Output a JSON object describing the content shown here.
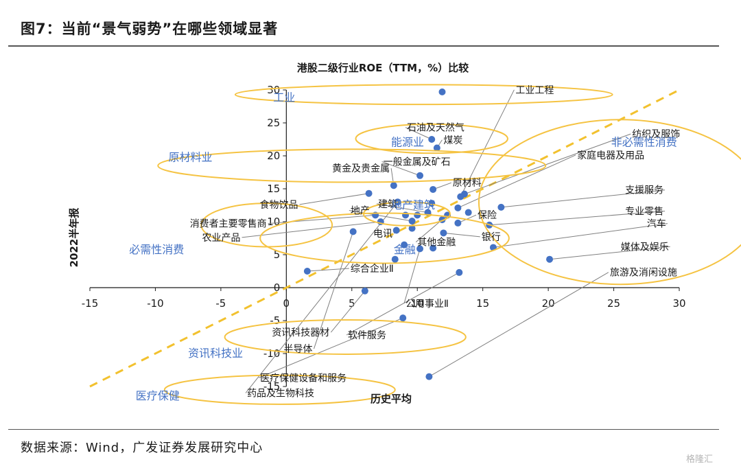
{
  "figure": {
    "title": "图7：当前“景气弱势”在哪些领域显著",
    "source": "数据来源：Wind，广发证券发展研究中心",
    "watermark": "格隆汇"
  },
  "colors": {
    "points": "#4472c4",
    "ellipse": "#f5c342",
    "diagonal": "#f2c12e",
    "leader": "#7f7f7f",
    "group_text": "#4472c4"
  },
  "chart_data": {
    "type": "scatter",
    "title": "港股二级行业ROE（TTM，%）比较",
    "xlabel": "历史平均",
    "ylabel": "2022半年报",
    "xlim": [
      -15,
      30
    ],
    "ylim": [
      -15,
      30
    ],
    "xticks": [
      -15,
      -10,
      -5,
      0,
      5,
      10,
      15,
      20,
      25,
      30
    ],
    "yticks": [
      -15,
      -10,
      -5,
      0,
      5,
      10,
      15,
      20,
      25,
      30
    ],
    "reference_line": "y = x",
    "points": [
      {
        "label": "工业工程",
        "x": 13.3,
        "y": 13.8,
        "lx": 17.5,
        "ly": 29.5,
        "anchor": "start"
      },
      {
        "label": "石油及天然气",
        "x": 11.1,
        "y": 22.5,
        "lx": 9.2,
        "ly": 23.8,
        "anchor": "start"
      },
      {
        "label": "煤炭",
        "x": 11.5,
        "y": 21.2,
        "lx": 12.0,
        "ly": 21.9,
        "anchor": "start"
      },
      {
        "label": "纺织及服饰",
        "x": 13.6,
        "y": 14.2,
        "lx": 26.4,
        "ly": 22.8,
        "anchor": "start"
      },
      {
        "label": "家庭电器及用品",
        "x": 13.1,
        "y": 12.1,
        "lx": 22.2,
        "ly": 19.6,
        "anchor": "start"
      },
      {
        "label": "黄金及贵金属",
        "x": 8.2,
        "y": 15.5,
        "lx": 7.9,
        "ly": 17.6,
        "anchor": "end"
      },
      {
        "label": "一般金属及矿石",
        "x": 10.2,
        "y": 17.0,
        "lx": 7.4,
        "ly": 18.6,
        "anchor": "start"
      },
      {
        "label": "原材料",
        "x": 11.2,
        "y": 14.9,
        "lx": 12.7,
        "ly": 15.4,
        "anchor": "start"
      },
      {
        "label": "支援服务",
        "x": 16.4,
        "y": 12.2,
        "lx": 28.8,
        "ly": 14.3,
        "anchor": "end"
      },
      {
        "label": "专业零售",
        "x": 15.5,
        "y": 9.5,
        "lx": 28.8,
        "ly": 11.1,
        "anchor": "end"
      },
      {
        "label": "汽车",
        "x": 15.8,
        "y": 6.1,
        "lx": 29.0,
        "ly": 9.2,
        "anchor": "end"
      },
      {
        "label": "媒体及娱乐",
        "x": 20.1,
        "y": 4.3,
        "lx": 29.2,
        "ly": 5.7,
        "anchor": "end"
      },
      {
        "label": "旅游及消闲设施",
        "x": 10.9,
        "y": -13.5,
        "lx": 24.7,
        "ly": 1.8,
        "anchor": "start"
      },
      {
        "label": "建筑",
        "x": 10.8,
        "y": 11.4,
        "lx": 7.0,
        "ly": 12.2,
        "anchor": "start"
      },
      {
        "label": "地产",
        "x": 9.6,
        "y": 10.1,
        "lx": 4.9,
        "ly": 11.2,
        "anchor": "start"
      },
      {
        "label": "保险",
        "x": 13.1,
        "y": 9.8,
        "lx": 14.6,
        "ly": 10.5,
        "anchor": "start"
      },
      {
        "label": "食物饮品",
        "x": 6.3,
        "y": 14.3,
        "lx": 0.9,
        "ly": 12.1,
        "anchor": "end"
      },
      {
        "label": "消费者主要零售商",
        "x": 6.8,
        "y": 11.0,
        "lx": -1.5,
        "ly": 9.2,
        "anchor": "end"
      },
      {
        "label": "农业产品",
        "x": 7.2,
        "y": 10.0,
        "lx": -3.5,
        "ly": 7.1,
        "anchor": "end"
      },
      {
        "label": "电讯",
        "x": 8.4,
        "y": 8.7,
        "lx": 8.1,
        "ly": 7.7,
        "anchor": "end"
      },
      {
        "label": "其他金融",
        "x": 12.3,
        "y": 11.0,
        "lx": 10.0,
        "ly": 6.4,
        "anchor": "start"
      },
      {
        "label": "银行",
        "x": 12.0,
        "y": 8.3,
        "lx": 14.9,
        "ly": 7.2,
        "anchor": "start"
      },
      {
        "label": "综合企业Ⅱ",
        "x": 1.6,
        "y": 2.5,
        "lx": 4.9,
        "ly": 2.4,
        "anchor": "start"
      },
      {
        "label": "公用事业Ⅱ",
        "x": 10.2,
        "y": 5.9,
        "lx": 9.1,
        "ly": -2.9,
        "anchor": "start"
      },
      {
        "label": "资讯科技器材",
        "x": 6.0,
        "y": -0.5,
        "lx": 3.3,
        "ly": -7.3,
        "anchor": "end"
      },
      {
        "label": "软件服务",
        "x": 13.2,
        "y": 2.3,
        "lx": 4.7,
        "ly": -7.7,
        "anchor": "start"
      },
      {
        "label": "半导体",
        "x": 5.1,
        "y": 8.5,
        "lx": 2.0,
        "ly": -9.8,
        "anchor": "end"
      },
      {
        "label": "医疗保健设备和服务",
        "x": 8.9,
        "y": -4.6,
        "lx": -2.0,
        "ly": -14.2,
        "anchor": "start"
      },
      {
        "label": "药品及生物科技",
        "x": 8.5,
        "y": 13.0,
        "lx": -3.0,
        "ly": -16.5,
        "anchor": "start"
      }
    ],
    "extra_points": [
      {
        "x": 9.1,
        "y": 11.0
      },
      {
        "x": 11.1,
        "y": 12.8
      },
      {
        "x": 9.6,
        "y": 9.0
      },
      {
        "x": 13.9,
        "y": 11.4
      },
      {
        "x": 9.0,
        "y": 6.5
      },
      {
        "x": 8.3,
        "y": 4.3
      },
      {
        "x": 11.9,
        "y": 10.3
      },
      {
        "x": 11.2,
        "y": 6.0
      },
      {
        "x": 10.0,
        "y": 11.0
      }
    ],
    "legend_marker": {
      "x": 11.9,
      "y": 29.7
    },
    "groups": [
      {
        "label": "工业",
        "lx": -1.0,
        "ly": 28.3,
        "cx": 10.5,
        "cy": 29.3,
        "rx": 14.4,
        "ry": 1.5
      },
      {
        "label": "能源业",
        "lx": 8.0,
        "ly": 21.5,
        "cx": 11.1,
        "cy": 22.6,
        "rx": 5.8,
        "ry": 2.2
      },
      {
        "label": "原材料业",
        "lx": -9.0,
        "ly": 19.2,
        "cx": 5.0,
        "cy": 18.5,
        "rx": 14.8,
        "ry": 2.5
      },
      {
        "label": "非必需性消费",
        "lx": 24.8,
        "ly": 21.5,
        "cx": 25.5,
        "cy": 13.0,
        "rx": 10.8,
        "ry": 12.5
      },
      {
        "label": "地产建筑",
        "lx": 8.0,
        "ly": 12.0,
        "cx": 9.2,
        "cy": 11.2,
        "rx": 3.3,
        "ry": 1.8
      },
      {
        "label": "必需性消费",
        "lx": -12.0,
        "ly": 5.2,
        "cx": -1.5,
        "cy": 9.5,
        "rx": 5.0,
        "ry": 3.3
      },
      {
        "label": "金融",
        "lx": 8.2,
        "ly": 5.2,
        "cx": 7.5,
        "cy": 7.5,
        "rx": 9.5,
        "ry": 3.8
      },
      {
        "label": "资讯科技业",
        "lx": -7.5,
        "ly": -10.5,
        "cx": 4.5,
        "cy": -7.5,
        "rx": 9.2,
        "ry": 2.6
      },
      {
        "label": "医疗保健",
        "lx": -11.5,
        "ly": -17.0,
        "cx": -0.5,
        "cy": -15.5,
        "rx": 8.8,
        "ry": 2.2
      }
    ]
  }
}
